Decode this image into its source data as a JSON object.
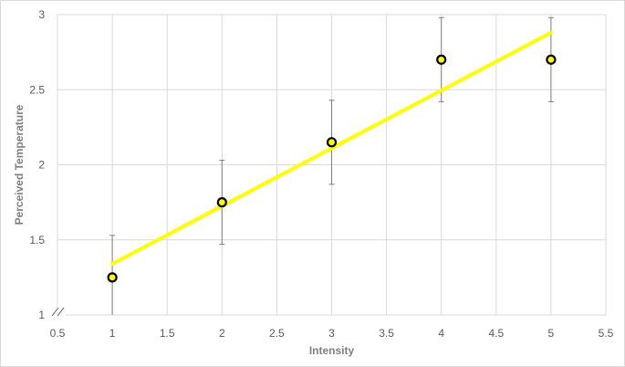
{
  "chart_data": {
    "type": "scatter",
    "title": "",
    "xlabel": "Intensity",
    "ylabel": "Perceived Temperature",
    "xlim": [
      0.5,
      5.5
    ],
    "ylim": [
      1,
      3
    ],
    "x_ticks": [
      "0.5",
      "1",
      "1.5",
      "2",
      "2.5",
      "3",
      "3.5",
      "4",
      "4.5",
      "5",
      "5.5"
    ],
    "y_ticks": [
      "1",
      "1.5",
      "2",
      "2.5",
      "3"
    ],
    "y_axis_break": true,
    "grid": true,
    "legend": "none",
    "series": [
      {
        "x": [
          1,
          2,
          3,
          4,
          5
        ],
        "y": [
          1.25,
          1.75,
          2.15,
          2.7,
          2.7
        ],
        "error": [
          0.28,
          0.28,
          0.28,
          0.28,
          0.28
        ],
        "marker_fill": "#ffff00",
        "marker_edge": "#000000"
      }
    ],
    "trendline": {
      "type": "linear",
      "x": [
        1,
        5
      ],
      "y": [
        1.34,
        2.88
      ],
      "color": "#ffff00"
    },
    "colors": {
      "grid": "#d9d9d9",
      "error_bar": "#7f7f7f",
      "text": "#595959"
    }
  }
}
